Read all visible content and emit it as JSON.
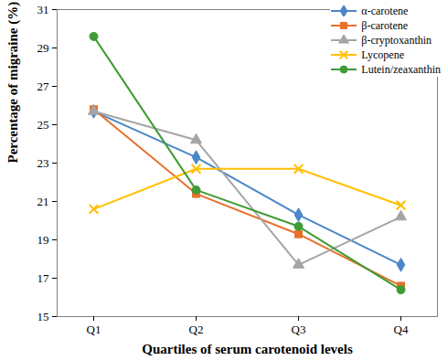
{
  "chart_data": {
    "type": "line",
    "x_label": "Quartiles of serum carotenoid levels",
    "y_label": "Percentage of migraine (%)",
    "categories": [
      "Q1",
      "Q2",
      "Q3",
      "Q4"
    ],
    "ylim": [
      15,
      31
    ],
    "yticks": [
      15,
      17,
      19,
      21,
      23,
      25,
      27,
      29,
      31
    ],
    "grid": false,
    "legend": "top-right",
    "series": [
      {
        "name": "α-carotene",
        "color": "#4a86c8",
        "marker": "diamond",
        "values": [
          25.7,
          23.3,
          20.3,
          17.7
        ]
      },
      {
        "name": "β-carotene",
        "color": "#e8702a",
        "marker": "square",
        "values": [
          25.8,
          21.4,
          19.3,
          16.6
        ]
      },
      {
        "name": "β-cryptoxanthin",
        "color": "#a5a5a5",
        "marker": "triangle",
        "values": [
          25.7,
          24.2,
          17.7,
          20.2
        ]
      },
      {
        "name": "Lycopene",
        "color": "#ffc000",
        "marker": "times",
        "values": [
          20.6,
          22.7,
          22.7,
          20.8
        ]
      },
      {
        "name": "Lutein/zeaxanthin",
        "color": "#3f9b35",
        "marker": "circle",
        "values": [
          29.6,
          21.6,
          19.7,
          16.4
        ]
      }
    ]
  }
}
